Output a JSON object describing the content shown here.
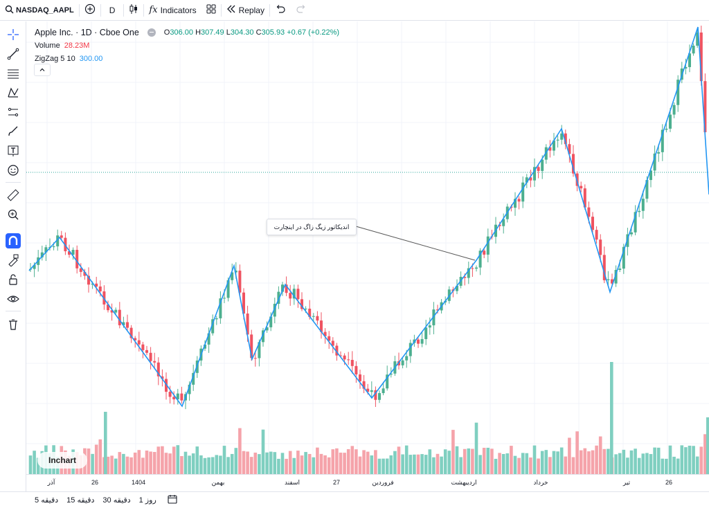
{
  "toolbar": {
    "symbol": "NASDAQ_AAPL",
    "interval": "D",
    "indicators_label": "Indicators",
    "replay_label": "Replay"
  },
  "legend": {
    "title": "Apple Inc. · 1D · Cboe One",
    "open_key": "O",
    "open": "306.00",
    "high_key": "H",
    "high": "307.49",
    "low_key": "L",
    "low": "304.30",
    "close_key": "C",
    "close": "305.93",
    "change": "+0.67 (+0.22%)",
    "volume_label": "Volume",
    "volume_value": "28.23M",
    "zigzag_label": "ZigZag 5 10",
    "zigzag_value": "300.00"
  },
  "annotation": "اندیکاتور زیگ زاگ در اینچارت",
  "watermark": "Inchart",
  "time_axis": [
    "آذر",
    "26",
    "1404",
    "بهمن",
    "اسفند",
    "27",
    "فروردین",
    "اردیبهشت",
    "خرداد",
    "تیر",
    "26"
  ],
  "bottom_bar": [
    "5 دقیقه",
    "15 دقیقه",
    "30 دقیقه",
    "1 روز"
  ],
  "colors": {
    "up": "#089981",
    "down": "#f23645",
    "zigzag": "#2196f3",
    "accent": "#2962ff"
  },
  "icons": [
    "search-icon",
    "add-symbol-icon",
    "candles-icon",
    "fx-icon",
    "templates-icon",
    "replay-icon",
    "undo-icon",
    "redo-icon",
    "crosshair-icon",
    "trendline-icon",
    "fib-icon",
    "pattern-icon",
    "projection-icon",
    "brush-icon",
    "text-icon",
    "emoji-icon",
    "ruler-icon",
    "zoom-icon",
    "magnet-icon",
    "lock-drawing-icon",
    "lock-icon",
    "eye-icon",
    "trash-icon",
    "calendar-icon"
  ]
}
